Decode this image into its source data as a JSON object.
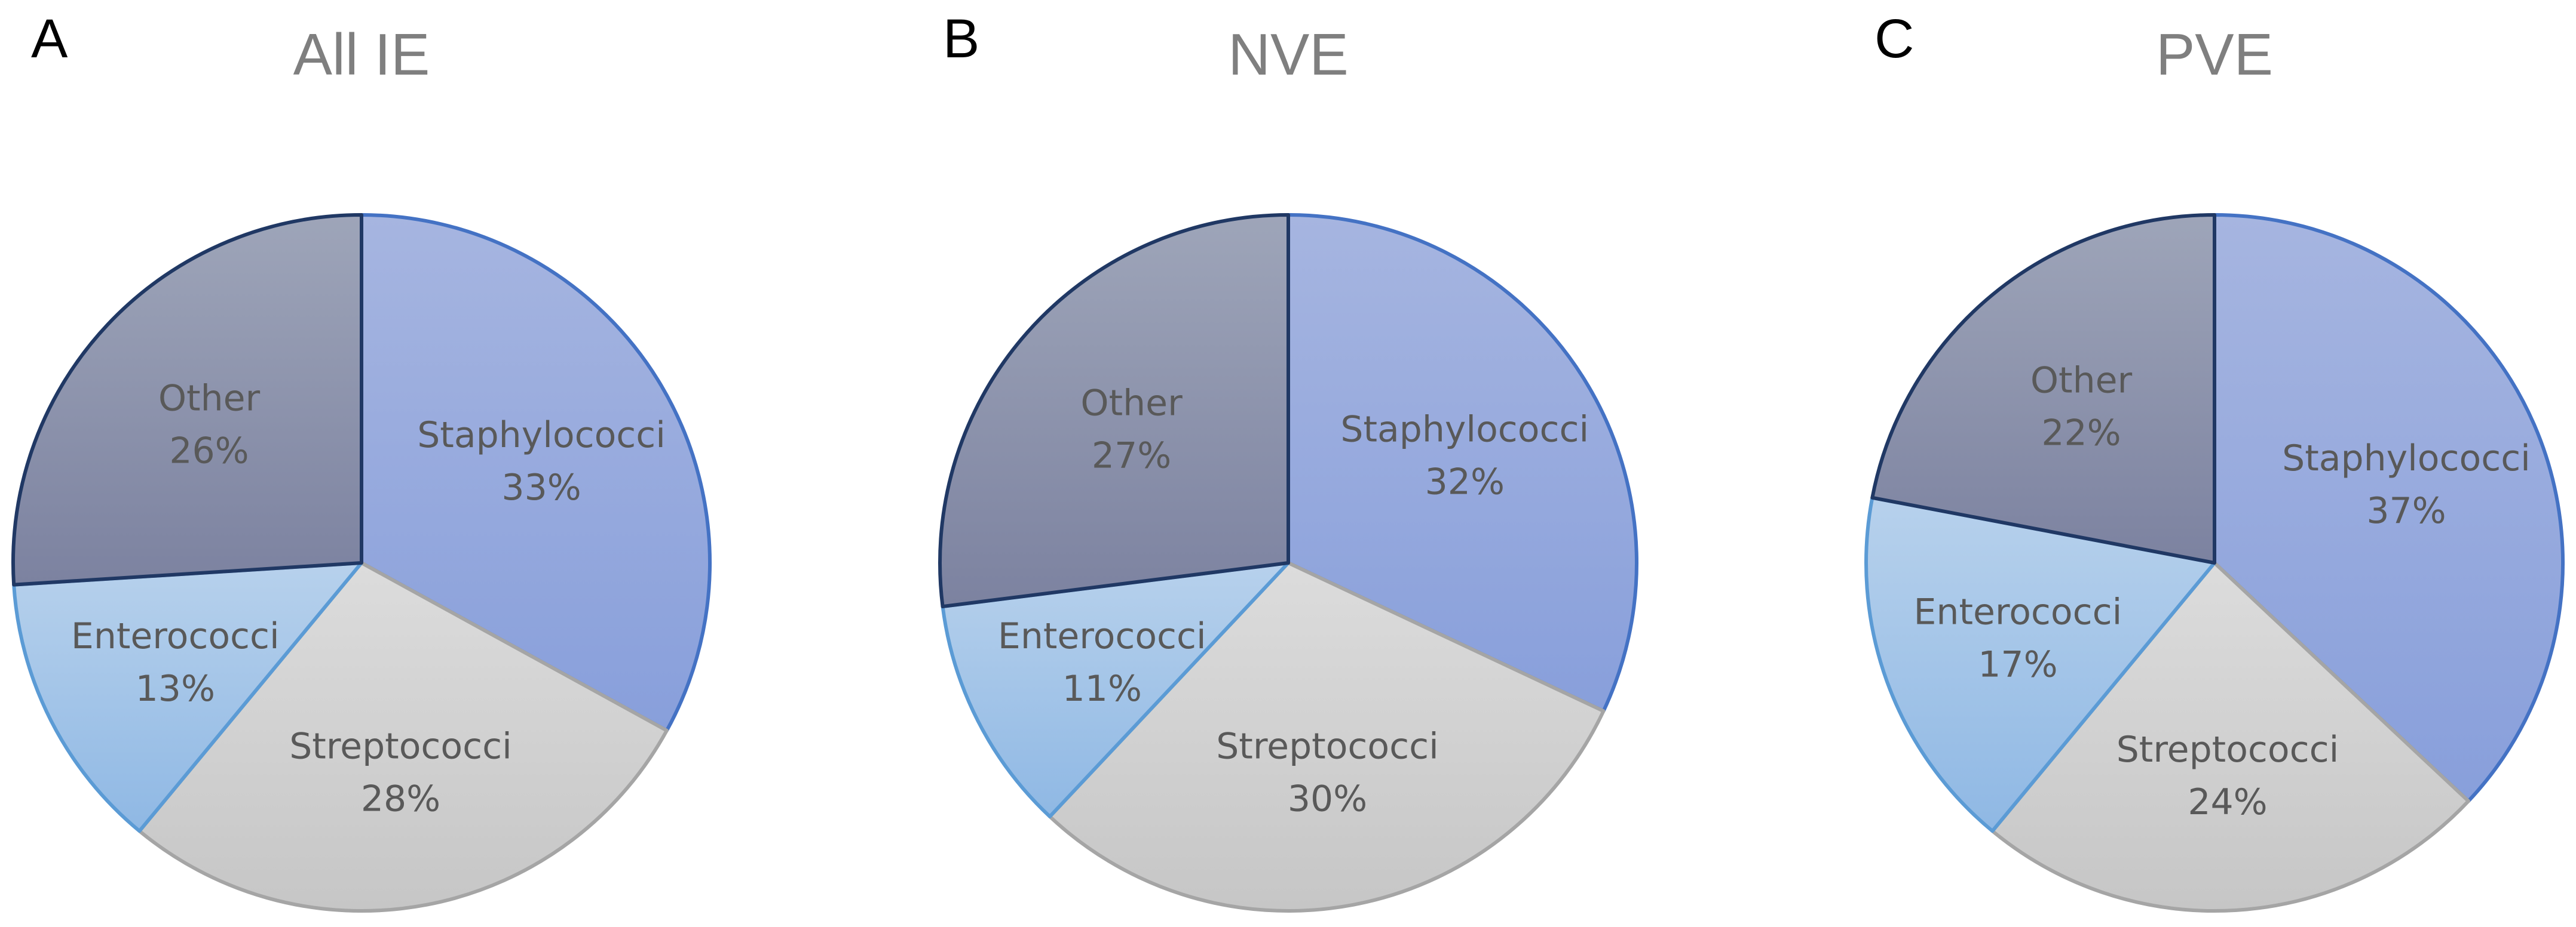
{
  "chart_data": [
    {
      "type": "pie",
      "panel_label": "A",
      "title": "All IE",
      "slices": [
        {
          "name": "Staphylococci",
          "value": 33,
          "label": "33%",
          "color_top": "#a6b5e0",
          "color_bottom": "#889fdb",
          "stroke": "#4472c4"
        },
        {
          "name": "Streptococci",
          "value": 28,
          "label": "28%",
          "color_top": "#dcdcdc",
          "color_bottom": "#c6c6c6",
          "stroke": "#a5a5a5"
        },
        {
          "name": "Enterococci",
          "value": 13,
          "label": "13%",
          "color_top": "#b7d1ec",
          "color_bottom": "#8fb8e4",
          "stroke": "#5b9bd5"
        },
        {
          "name": "Other",
          "value": 26,
          "label": "26%",
          "color_top": "#9ea5b9",
          "color_bottom": "#7c82a0",
          "stroke": "#203864"
        }
      ]
    },
    {
      "type": "pie",
      "panel_label": "B",
      "title": "NVE",
      "slices": [
        {
          "name": "Staphylococci",
          "value": 32,
          "label": "32%",
          "color_top": "#a6b5e0",
          "color_bottom": "#889fdb",
          "stroke": "#4472c4"
        },
        {
          "name": "Streptococci",
          "value": 30,
          "label": "30%",
          "color_top": "#dcdcdc",
          "color_bottom": "#c6c6c6",
          "stroke": "#a5a5a5"
        },
        {
          "name": "Enterococci",
          "value": 11,
          "label": "11%",
          "color_top": "#b7d1ec",
          "color_bottom": "#8fb8e4",
          "stroke": "#5b9bd5"
        },
        {
          "name": "Other",
          "value": 27,
          "label": "27%",
          "color_top": "#9ea5b9",
          "color_bottom": "#7c82a0",
          "stroke": "#203864"
        }
      ]
    },
    {
      "type": "pie",
      "panel_label": "C",
      "title": "PVE",
      "slices": [
        {
          "name": "Staphylococci",
          "value": 37,
          "label": "37%",
          "color_top": "#a6b5e0",
          "color_bottom": "#889fdb",
          "stroke": "#4472c4"
        },
        {
          "name": "Streptococci",
          "value": 24,
          "label": "24%",
          "color_top": "#dcdcdc",
          "color_bottom": "#c6c6c6",
          "stroke": "#a5a5a5"
        },
        {
          "name": "Enterococci",
          "value": 17,
          "label": "17%",
          "color_top": "#b7d1ec",
          "color_bottom": "#8fb8e4",
          "stroke": "#5b9bd5"
        },
        {
          "name": "Other",
          "value": 22,
          "label": "22%",
          "color_top": "#9ea5b9",
          "color_bottom": "#7c82a0",
          "stroke": "#203864"
        }
      ]
    }
  ]
}
